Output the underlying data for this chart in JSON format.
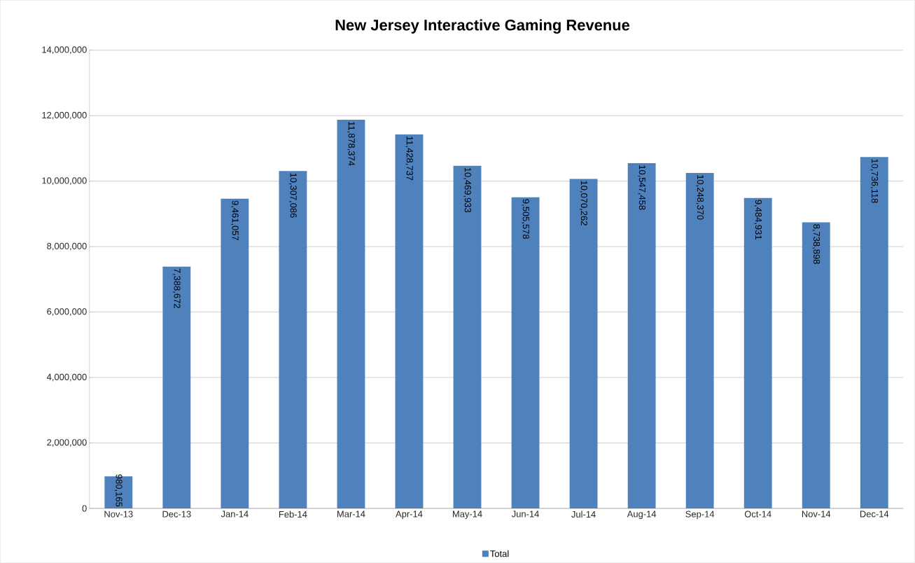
{
  "chart_data": {
    "type": "bar",
    "title": "New Jersey Interactive Gaming Revenue",
    "categories": [
      "Nov-13",
      "Dec-13",
      "Jan-14",
      "Feb-14",
      "Mar-14",
      "Apr-14",
      "May-14",
      "Jun-14",
      "Jul-14",
      "Aug-14",
      "Sep-14",
      "Oct-14",
      "Nov-14",
      "Dec-14"
    ],
    "series": [
      {
        "name": "Total",
        "color": "#4f81bd",
        "values": [
          980165,
          7388672,
          9461057,
          10307086,
          11878374,
          11428737,
          10469933,
          9505578,
          10070262,
          10547458,
          10248370,
          9484931,
          8738898,
          10736118
        ],
        "value_labels": [
          "980,165",
          "7,388,672",
          "9,461,057",
          "10,307,086",
          "11,878,374",
          "11,428,737",
          "10,469,933",
          "9,505,578",
          "10,070,262",
          "10,547,458",
          "10,248,370",
          "9,484,931",
          "8,738,898",
          "10,736,118"
        ]
      }
    ],
    "ylim": [
      0,
      14000000
    ],
    "yticks": [
      0,
      {
        "value": 2000000,
        "label": "2,000,000"
      },
      {
        "value": 4000000,
        "label": "4,000,000"
      },
      {
        "value": 6000000,
        "label": "6,000,000"
      },
      {
        "value": 8000000,
        "label": "8,000,000"
      },
      {
        "value": 10000000,
        "label": "10,000,000"
      },
      {
        "value": 12000000,
        "label": "12,000,000"
      },
      {
        "value": 14000000,
        "label": "14,000,000"
      }
    ],
    "grid": "y",
    "legend": "bottom"
  }
}
